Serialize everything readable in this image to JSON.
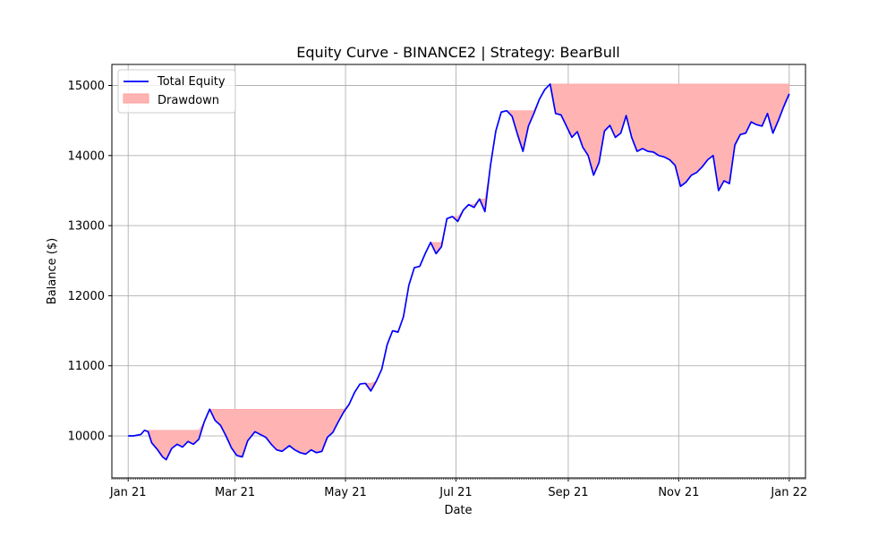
{
  "chart_data": {
    "type": "line",
    "title": "Equity Curve - BINANCE2 | Strategy: BearBull",
    "xlabel": "Date",
    "ylabel": "Balance ($)",
    "ylim": [
      9400,
      15300
    ],
    "xlim": [
      "2020-12-23",
      "2022-01-10"
    ],
    "grid": true,
    "legend_position": "top-left",
    "colors": {
      "equity": "#0000ff",
      "drawdown": "#ffb3b3",
      "drawdown_edge": "#ff9f9f",
      "grid": "#b0b0b0"
    },
    "x_ticks": [
      {
        "date": "2021-01-01",
        "label": "Jan 21"
      },
      {
        "date": "2021-03-01",
        "label": "Mar 21"
      },
      {
        "date": "2021-05-01",
        "label": "May 21"
      },
      {
        "date": "2021-07-01",
        "label": "Jul 21"
      },
      {
        "date": "2021-09-01",
        "label": "Sep 21"
      },
      {
        "date": "2021-11-01",
        "label": "Nov 21"
      },
      {
        "date": "2022-01-01",
        "label": "Jan 22"
      }
    ],
    "y_ticks": [
      10000,
      11000,
      12000,
      13000,
      14000,
      15000
    ],
    "series": [
      {
        "name": "Total Equity",
        "points": [
          [
            "2021-01-01",
            10000
          ],
          [
            "2021-01-04",
            10000
          ],
          [
            "2021-01-08",
            10020
          ],
          [
            "2021-01-10",
            10080
          ],
          [
            "2021-01-12",
            10060
          ],
          [
            "2021-01-14",
            9900
          ],
          [
            "2021-01-17",
            9810
          ],
          [
            "2021-01-20",
            9700
          ],
          [
            "2021-01-22",
            9660
          ],
          [
            "2021-01-25",
            9820
          ],
          [
            "2021-01-28",
            9880
          ],
          [
            "2021-01-31",
            9840
          ],
          [
            "2021-02-03",
            9920
          ],
          [
            "2021-02-06",
            9880
          ],
          [
            "2021-02-09",
            9950
          ],
          [
            "2021-02-12",
            10200
          ],
          [
            "2021-02-15",
            10380
          ],
          [
            "2021-02-18",
            10220
          ],
          [
            "2021-02-21",
            10150
          ],
          [
            "2021-02-24",
            10000
          ],
          [
            "2021-02-27",
            9830
          ],
          [
            "2021-03-02",
            9720
          ],
          [
            "2021-03-05",
            9700
          ],
          [
            "2021-03-08",
            9930
          ],
          [
            "2021-03-12",
            10060
          ],
          [
            "2021-03-15",
            10020
          ],
          [
            "2021-03-18",
            9980
          ],
          [
            "2021-03-21",
            9880
          ],
          [
            "2021-03-24",
            9800
          ],
          [
            "2021-03-27",
            9780
          ],
          [
            "2021-03-31",
            9860
          ],
          [
            "2021-04-03",
            9800
          ],
          [
            "2021-04-06",
            9760
          ],
          [
            "2021-04-09",
            9740
          ],
          [
            "2021-04-12",
            9800
          ],
          [
            "2021-04-15",
            9760
          ],
          [
            "2021-04-18",
            9780
          ],
          [
            "2021-04-21",
            9980
          ],
          [
            "2021-04-24",
            10050
          ],
          [
            "2021-04-27",
            10200
          ],
          [
            "2021-04-30",
            10340
          ],
          [
            "2021-05-03",
            10450
          ],
          [
            "2021-05-06",
            10620
          ],
          [
            "2021-05-09",
            10740
          ],
          [
            "2021-05-12",
            10750
          ],
          [
            "2021-05-15",
            10640
          ],
          [
            "2021-05-18",
            10780
          ],
          [
            "2021-05-21",
            10950
          ],
          [
            "2021-05-24",
            11300
          ],
          [
            "2021-05-27",
            11500
          ],
          [
            "2021-05-30",
            11480
          ],
          [
            "2021-06-02",
            11700
          ],
          [
            "2021-06-05",
            12150
          ],
          [
            "2021-06-08",
            12400
          ],
          [
            "2021-06-11",
            12420
          ],
          [
            "2021-06-14",
            12600
          ],
          [
            "2021-06-17",
            12760
          ],
          [
            "2021-06-20",
            12600
          ],
          [
            "2021-06-23",
            12700
          ],
          [
            "2021-06-26",
            13100
          ],
          [
            "2021-06-29",
            13130
          ],
          [
            "2021-07-02",
            13060
          ],
          [
            "2021-07-05",
            13220
          ],
          [
            "2021-07-08",
            13300
          ],
          [
            "2021-07-11",
            13260
          ],
          [
            "2021-07-14",
            13380
          ],
          [
            "2021-07-17",
            13200
          ],
          [
            "2021-07-20",
            13850
          ],
          [
            "2021-07-23",
            14350
          ],
          [
            "2021-07-26",
            14620
          ],
          [
            "2021-07-29",
            14640
          ],
          [
            "2021-08-01",
            14560
          ],
          [
            "2021-08-04",
            14300
          ],
          [
            "2021-08-07",
            14060
          ],
          [
            "2021-08-10",
            14420
          ],
          [
            "2021-08-13",
            14600
          ],
          [
            "2021-08-16",
            14800
          ],
          [
            "2021-08-19",
            14940
          ],
          [
            "2021-08-22",
            15020
          ],
          [
            "2021-08-25",
            14600
          ],
          [
            "2021-08-28",
            14580
          ],
          [
            "2021-08-31",
            14420
          ],
          [
            "2021-09-03",
            14260
          ],
          [
            "2021-09-06",
            14340
          ],
          [
            "2021-09-09",
            14120
          ],
          [
            "2021-09-12",
            14000
          ],
          [
            "2021-09-15",
            13720
          ],
          [
            "2021-09-18",
            13900
          ],
          [
            "2021-09-21",
            14350
          ],
          [
            "2021-09-24",
            14430
          ],
          [
            "2021-09-27",
            14260
          ],
          [
            "2021-09-30",
            14320
          ],
          [
            "2021-10-03",
            14570
          ],
          [
            "2021-10-06",
            14260
          ],
          [
            "2021-10-09",
            14060
          ],
          [
            "2021-10-12",
            14100
          ],
          [
            "2021-10-15",
            14060
          ],
          [
            "2021-10-18",
            14050
          ],
          [
            "2021-10-21",
            14000
          ],
          [
            "2021-10-24",
            13980
          ],
          [
            "2021-10-27",
            13940
          ],
          [
            "2021-10-30",
            13860
          ],
          [
            "2021-11-02",
            13560
          ],
          [
            "2021-11-05",
            13620
          ],
          [
            "2021-11-08",
            13720
          ],
          [
            "2021-11-11",
            13760
          ],
          [
            "2021-11-14",
            13840
          ],
          [
            "2021-11-17",
            13940
          ],
          [
            "2021-11-20",
            14000
          ],
          [
            "2021-11-23",
            13500
          ],
          [
            "2021-11-26",
            13640
          ],
          [
            "2021-11-29",
            13600
          ],
          [
            "2021-12-02",
            14150
          ],
          [
            "2021-12-05",
            14300
          ],
          [
            "2021-12-08",
            14320
          ],
          [
            "2021-12-11",
            14480
          ],
          [
            "2021-12-14",
            14440
          ],
          [
            "2021-12-17",
            14420
          ],
          [
            "2021-12-20",
            14600
          ],
          [
            "2021-12-23",
            14320
          ],
          [
            "2021-12-26",
            14500
          ],
          [
            "2021-12-29",
            14700
          ],
          [
            "2022-01-01",
            14880
          ]
        ]
      },
      {
        "name": "Drawdown",
        "fill_to": "running_max"
      }
    ]
  }
}
